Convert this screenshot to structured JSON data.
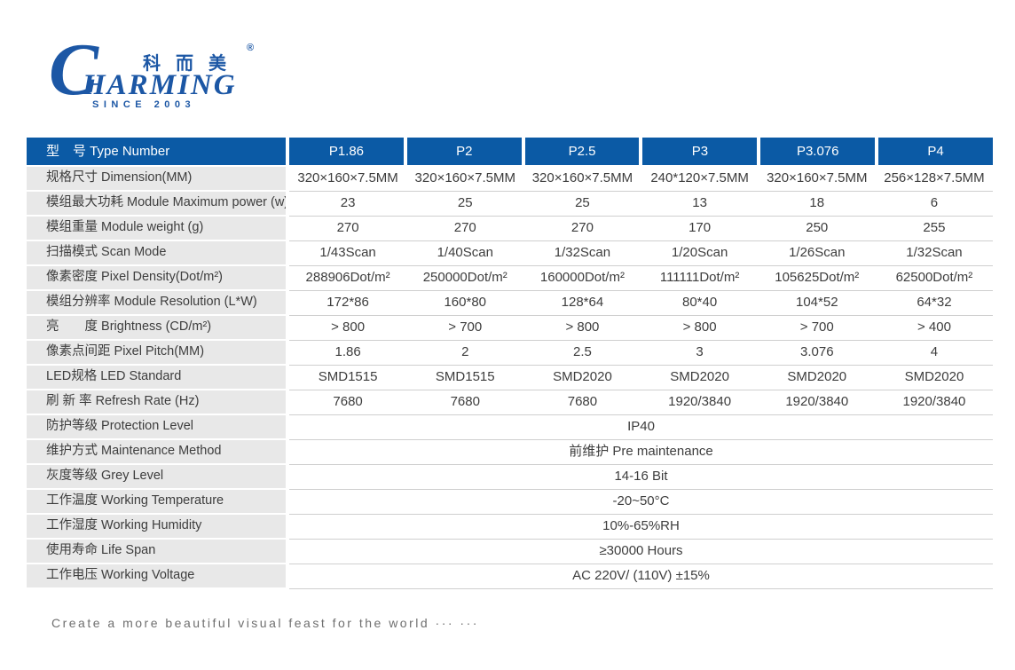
{
  "logo": {
    "initial": "C",
    "wordmark_rest": "HARMING",
    "chinese_name": "科而美",
    "registered_mark": "®",
    "tagline": "SINCE 2003",
    "brand_color": "#1c57a5"
  },
  "table": {
    "header_bg": "#0b5aa5",
    "header_label": "型　号 Type Number",
    "columns": [
      "P1.86",
      "P2",
      "P2.5",
      "P3",
      "P3.076",
      "P4"
    ],
    "rows": [
      {
        "label": "规格尺寸 Dimension(MM)",
        "values": [
          "320×160×7.5MM",
          "320×160×7.5MM",
          "320×160×7.5MM",
          "240*120×7.5MM",
          "320×160×7.5MM",
          "256×128×7.5MM"
        ]
      },
      {
        "label": "模组最大功耗 Module Maximum power (w)",
        "values": [
          "23",
          "25",
          "25",
          "13",
          "18",
          "6"
        ]
      },
      {
        "label": "模组重量 Module weight (g)",
        "values": [
          "270",
          "270",
          "270",
          "170",
          "250",
          "255"
        ]
      },
      {
        "label": "扫描模式 Scan Mode",
        "values": [
          "1/43Scan",
          "1/40Scan",
          "1/32Scan",
          "1/20Scan",
          "1/26Scan",
          "1/32Scan"
        ]
      },
      {
        "label": "像素密度 Pixel Density(Dot/m²)",
        "values": [
          "288906Dot/m²",
          "250000Dot/m²",
          "160000Dot/m²",
          "111111Dot/m²",
          "105625Dot/m²",
          "62500Dot/m²"
        ]
      },
      {
        "label": "模组分辨率 Module Resolution (L*W)",
        "values": [
          "172*86",
          "160*80",
          "128*64",
          "80*40",
          "104*52",
          "64*32"
        ]
      },
      {
        "label": "亮　　度 Brightness (CD/m²)",
        "values": [
          "> 800",
          "> 700",
          "> 800",
          "> 800",
          "> 700",
          "> 400"
        ]
      },
      {
        "label": "像素点间距 Pixel Pitch(MM)",
        "values": [
          "1.86",
          "2",
          "2.5",
          "3",
          "3.076",
          "4"
        ]
      },
      {
        "label": "LED规格 LED Standard",
        "values": [
          "SMD1515",
          "SMD1515",
          "SMD2020",
          "SMD2020",
          "SMD2020",
          "SMD2020"
        ]
      },
      {
        "label": "刷 新 率 Refresh Rate (Hz)",
        "values": [
          "7680",
          "7680",
          "7680",
          "1920/3840",
          "1920/3840",
          "1920/3840"
        ]
      },
      {
        "label": "防护等级 Protection Level",
        "merged": "IP40"
      },
      {
        "label": "维护方式 Maintenance Method",
        "merged": "前维护 Pre maintenance"
      },
      {
        "label": "灰度等级 Grey Level",
        "merged": "14-16 Bit"
      },
      {
        "label": "工作温度 Working Temperature",
        "merged": "-20~50°C"
      },
      {
        "label": "工作湿度 Working Humidity",
        "merged": "10%-65%RH"
      },
      {
        "label": "使用寿命 Life Span",
        "merged": "≥30000 Hours"
      },
      {
        "label": "工作电压 Working Voltage",
        "merged": "AC 220V/ (110V) ±15%"
      }
    ]
  },
  "footer": {
    "slogan": "Create a more beautiful visual feast for the world ··· ···"
  }
}
